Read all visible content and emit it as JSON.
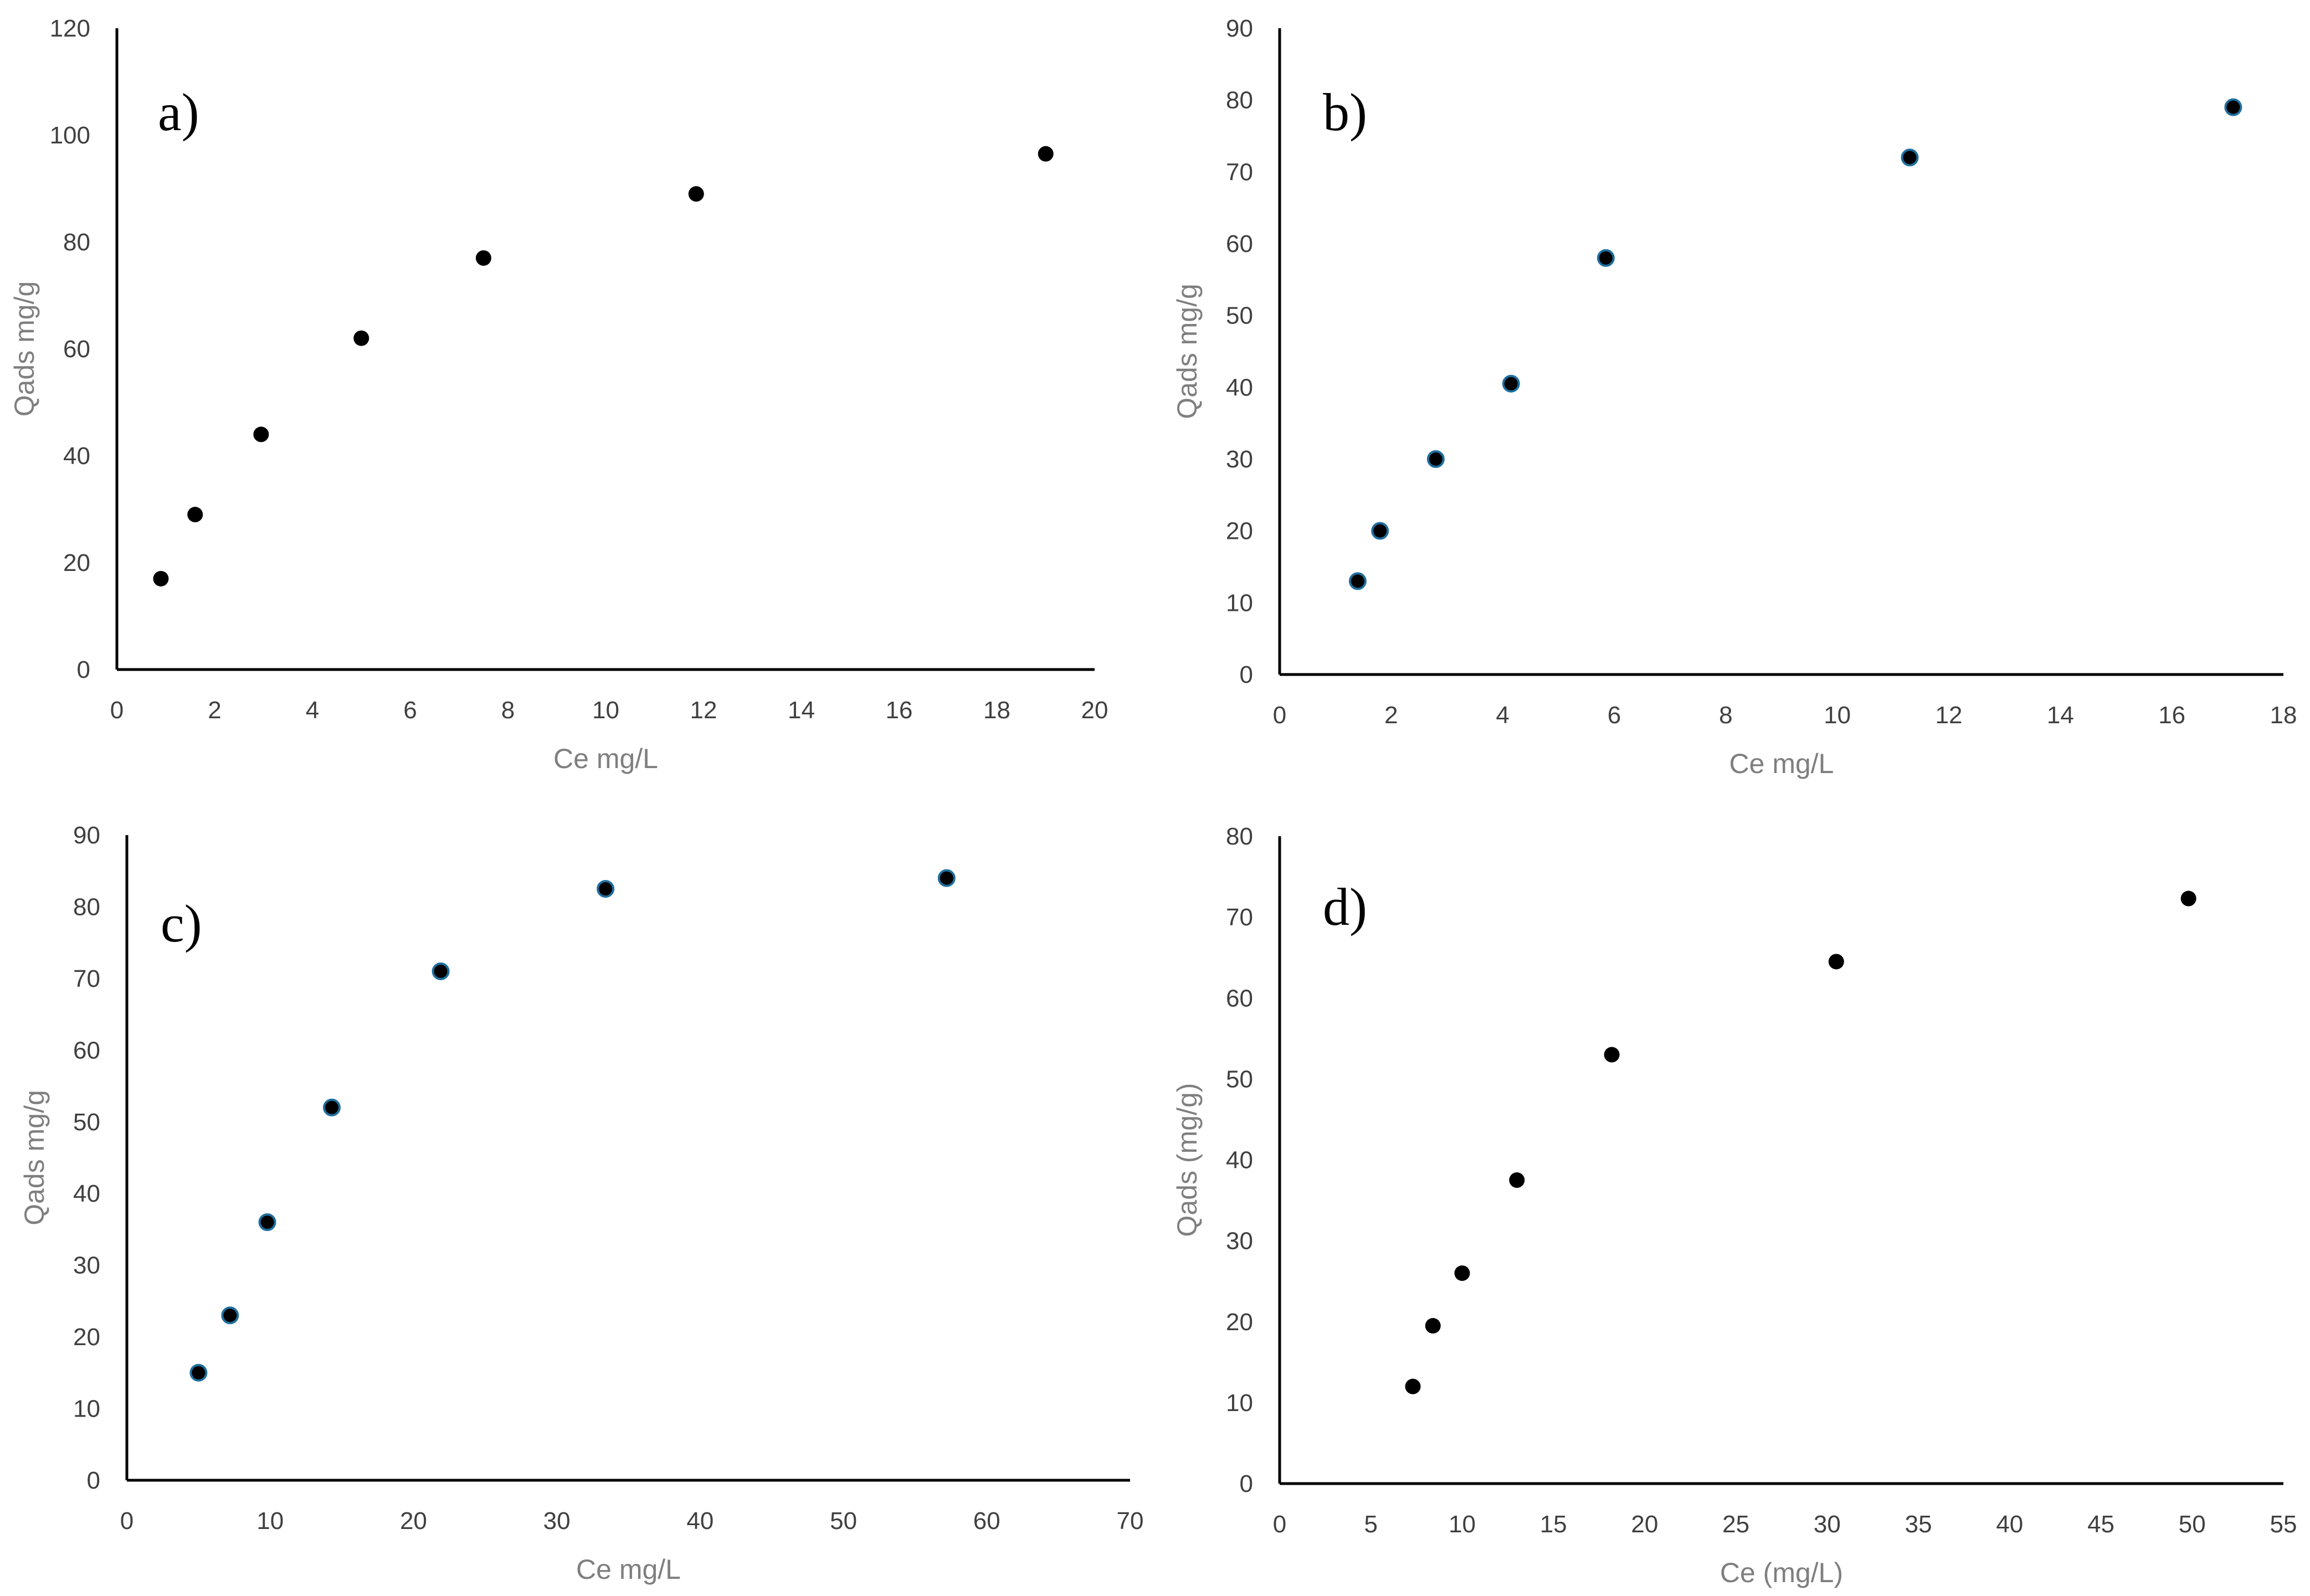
{
  "chart_data": [
    {
      "type": "scatter",
      "panel_label": "a)",
      "xlabel": "Ce mg/L",
      "ylabel": "Qads mg/g",
      "xlim": [
        0,
        20
      ],
      "ylim": [
        0,
        120
      ],
      "x_ticks": [
        "0",
        "2",
        "4",
        "6",
        "8",
        "10",
        "12",
        "14",
        "16",
        "18",
        "20"
      ],
      "y_ticks": [
        "0",
        "20",
        "40",
        "60",
        "80",
        "100",
        "120"
      ],
      "marker_color": "#000000",
      "series": [
        {
          "name": "Qads",
          "x": [
            0.9,
            1.6,
            2.95,
            5.0,
            7.5,
            11.85,
            19.0
          ],
          "y": [
            17,
            29,
            44,
            62,
            77,
            89,
            96.5
          ]
        }
      ]
    },
    {
      "type": "scatter",
      "panel_label": "b)",
      "xlabel": "Ce mg/L",
      "ylabel": "Qads mg/g",
      "xlim": [
        0,
        18
      ],
      "ylim": [
        0,
        90
      ],
      "x_ticks": [
        "0",
        "2",
        "4",
        "6",
        "8",
        "10",
        "12",
        "14",
        "16",
        "18"
      ],
      "y_ticks": [
        "0",
        "10",
        "20",
        "30",
        "40",
        "50",
        "60",
        "70",
        "80",
        "90"
      ],
      "marker_color": "#000000",
      "marker_edge": "#1f6f9f",
      "series": [
        {
          "name": "Qads",
          "x": [
            1.4,
            1.8,
            2.8,
            4.15,
            5.85,
            11.3,
            17.1
          ],
          "y": [
            13,
            20,
            30,
            40.5,
            58,
            72,
            79
          ]
        }
      ]
    },
    {
      "type": "scatter",
      "panel_label": "c)",
      "xlabel": "Ce mg/L",
      "ylabel": "Qads mg/g",
      "xlim": [
        0,
        70
      ],
      "ylim": [
        0,
        90
      ],
      "x_ticks": [
        "0",
        "10",
        "20",
        "30",
        "40",
        "50",
        "60",
        "70"
      ],
      "y_ticks": [
        "0",
        "10",
        "20",
        "30",
        "40",
        "50",
        "60",
        "70",
        "80",
        "90"
      ],
      "marker_color": "#000000",
      "marker_edge": "#1f6f9f",
      "series": [
        {
          "name": "Qads",
          "x": [
            5.0,
            7.2,
            9.8,
            14.3,
            21.9,
            33.4,
            57.2
          ],
          "y": [
            15,
            23,
            36,
            52,
            71,
            82.5,
            84
          ]
        }
      ]
    },
    {
      "type": "scatter",
      "panel_label": "d)",
      "xlabel": "Ce (mg/L)",
      "ylabel": "Qads (mg/g)",
      "xlim": [
        0,
        55
      ],
      "ylim": [
        0,
        80
      ],
      "x_ticks": [
        "0",
        "5",
        "10",
        "15",
        "20",
        "25",
        "30",
        "35",
        "40",
        "45",
        "50",
        "55"
      ],
      "y_ticks": [
        "0",
        "10",
        "20",
        "30",
        "40",
        "50",
        "60",
        "70",
        "80"
      ],
      "marker_color": "#000000",
      "series": [
        {
          "name": "Qads",
          "x": [
            7.3,
            8.4,
            10.0,
            13.0,
            18.2,
            30.5,
            49.8
          ],
          "y": [
            12,
            19.5,
            26,
            37.5,
            53,
            64.5,
            72.3
          ]
        }
      ]
    }
  ]
}
